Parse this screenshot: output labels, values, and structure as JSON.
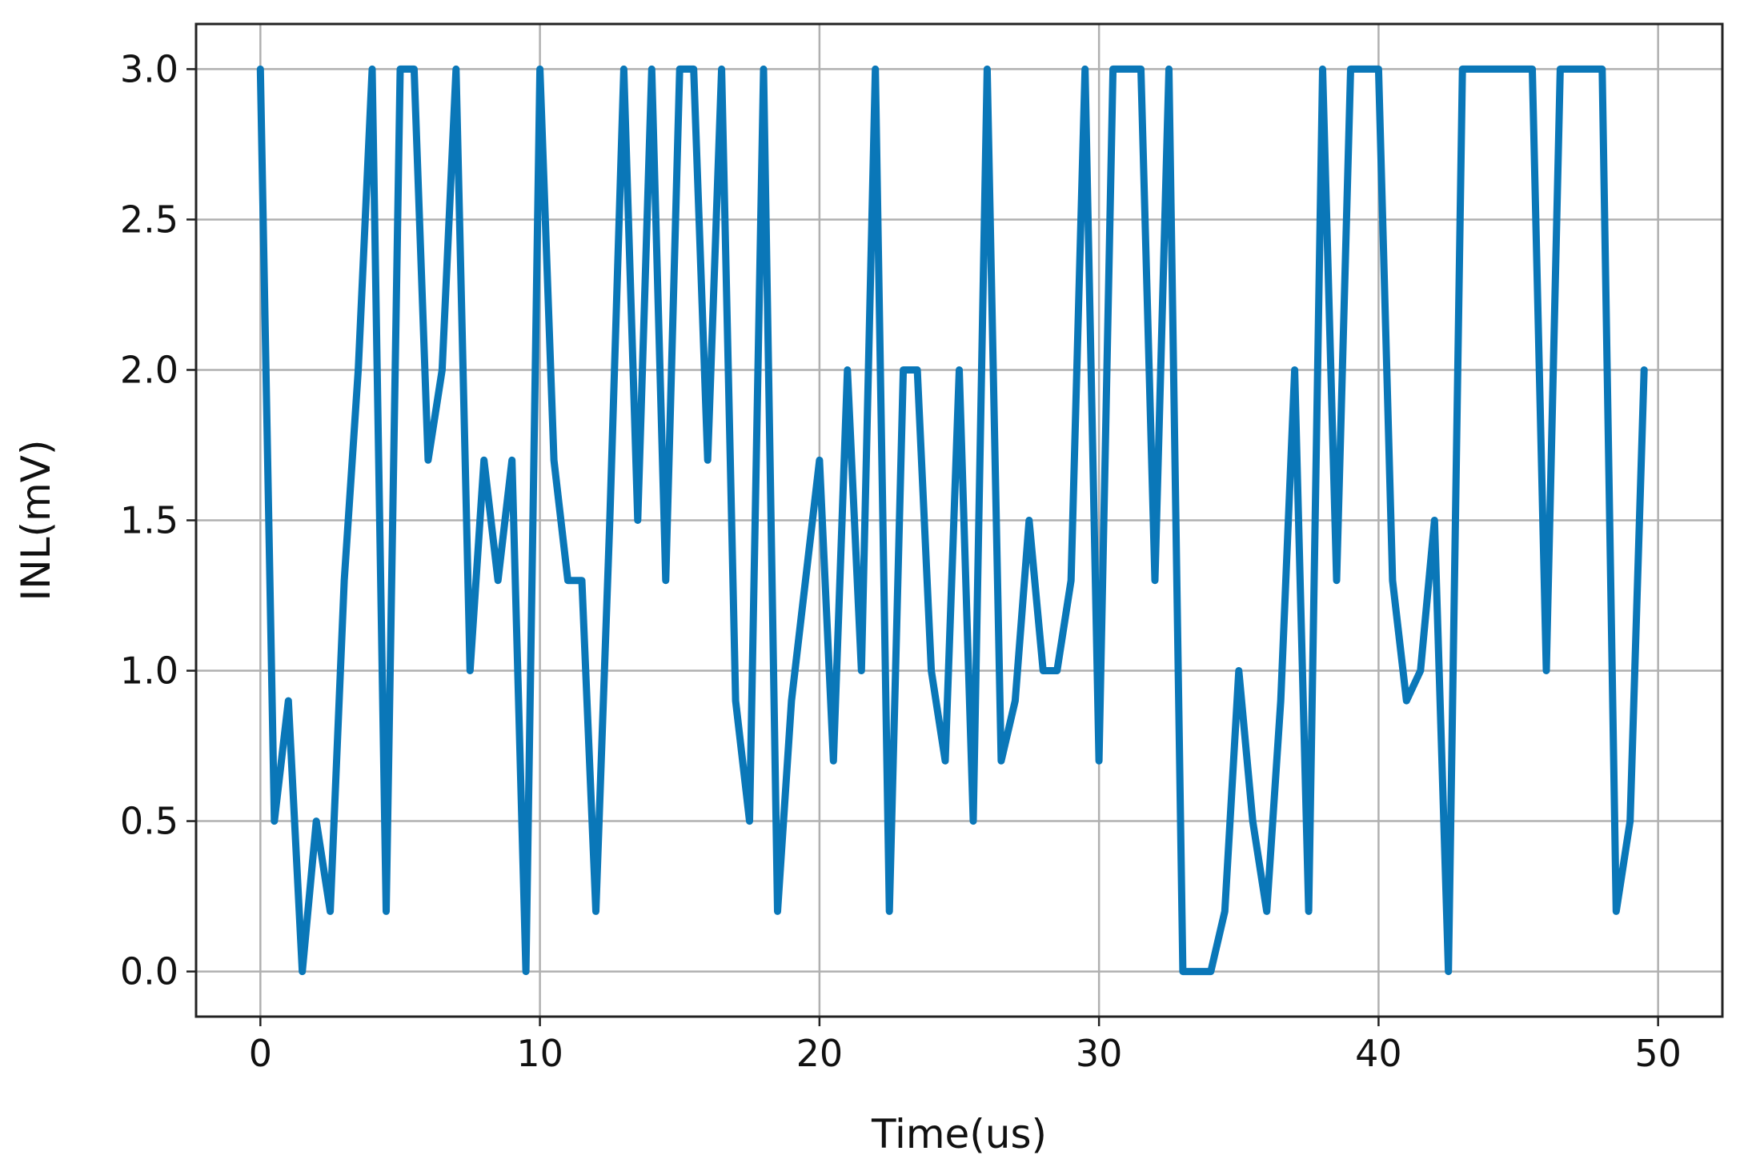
{
  "chart_data": {
    "type": "line",
    "title": "",
    "xlabel": "Time(us)",
    "ylabel": "INL(mV)",
    "xlim": [
      -2.3,
      52.3
    ],
    "ylim": [
      -0.15,
      3.15
    ],
    "xticks": [
      0,
      10,
      20,
      30,
      40,
      50
    ],
    "xtick_labels": [
      "0",
      "10",
      "20",
      "30",
      "40",
      "50"
    ],
    "yticks": [
      0.0,
      0.5,
      1.0,
      1.5,
      2.0,
      2.5,
      3.0
    ],
    "ytick_labels": [
      "0.0",
      "0.5",
      "1.0",
      "1.5",
      "2.0",
      "2.5",
      "3.0"
    ],
    "grid": true,
    "color": "#0a77b8",
    "series": [
      {
        "x": [
          0,
          0.5,
          1.0,
          1.5,
          2.0,
          2.5,
          3.0,
          3.5,
          4.0,
          4.5,
          5.0,
          5.5,
          6.0,
          6.5,
          7.0,
          7.5,
          8.0,
          8.5,
          9.0,
          9.5,
          10.0,
          10.5,
          11.0,
          11.5,
          12.0,
          12.5,
          13.0,
          13.5,
          14.0,
          14.5,
          15.0,
          15.5,
          16.0,
          16.5,
          17.0,
          17.5,
          18.0,
          18.5,
          19.0,
          19.5,
          20.0,
          20.5,
          21.0,
          21.5,
          22.0,
          22.5,
          23.0,
          23.5,
          24.0,
          24.5,
          25.0,
          25.5,
          26.0,
          26.5,
          27.0,
          27.5,
          28.0,
          28.5,
          29.0,
          29.5,
          30.0,
          30.5,
          31.0,
          31.5,
          32.0,
          32.5,
          33.0,
          33.5,
          34.0,
          34.5,
          35.0,
          35.5,
          36.0,
          36.5,
          37.0,
          37.5,
          38.0,
          38.5,
          39.0,
          39.5,
          40.0,
          40.5,
          41.0,
          41.5,
          42.0,
          42.5,
          43.0,
          43.5,
          44.0,
          44.5,
          45.0,
          45.5,
          46.0,
          46.5,
          47.0,
          47.5,
          48.0,
          48.5,
          49.0,
          49.5
        ],
        "y": [
          3.0,
          0.5,
          0.9,
          0.0,
          0.5,
          0.2,
          1.3,
          2.0,
          3.0,
          0.2,
          3.0,
          3.0,
          1.7,
          2.0,
          3.0,
          1.0,
          1.7,
          1.3,
          1.7,
          0.0,
          3.0,
          1.7,
          1.3,
          1.3,
          0.2,
          1.5,
          3.0,
          1.5,
          3.0,
          1.3,
          3.0,
          3.0,
          1.7,
          3.0,
          0.9,
          0.5,
          3.0,
          0.2,
          0.9,
          1.3,
          1.7,
          0.7,
          2.0,
          1.0,
          3.0,
          0.2,
          2.0,
          2.0,
          1.0,
          0.7,
          2.0,
          0.5,
          3.0,
          0.7,
          0.9,
          1.5,
          1.0,
          1.0,
          1.3,
          3.0,
          0.7,
          3.0,
          3.0,
          3.0,
          1.3,
          3.0,
          0.0,
          0.0,
          0.0,
          0.2,
          1.0,
          0.5,
          0.2,
          0.9,
          2.0,
          0.2,
          3.0,
          1.3,
          3.0,
          3.0,
          3.0,
          1.3,
          0.9,
          1.0,
          1.5,
          0.0,
          3.0,
          3.0,
          3.0,
          3.0,
          3.0,
          3.0,
          1.0,
          3.0,
          3.0,
          3.0,
          3.0,
          0.2,
          0.5,
          2.0
        ]
      }
    ]
  }
}
